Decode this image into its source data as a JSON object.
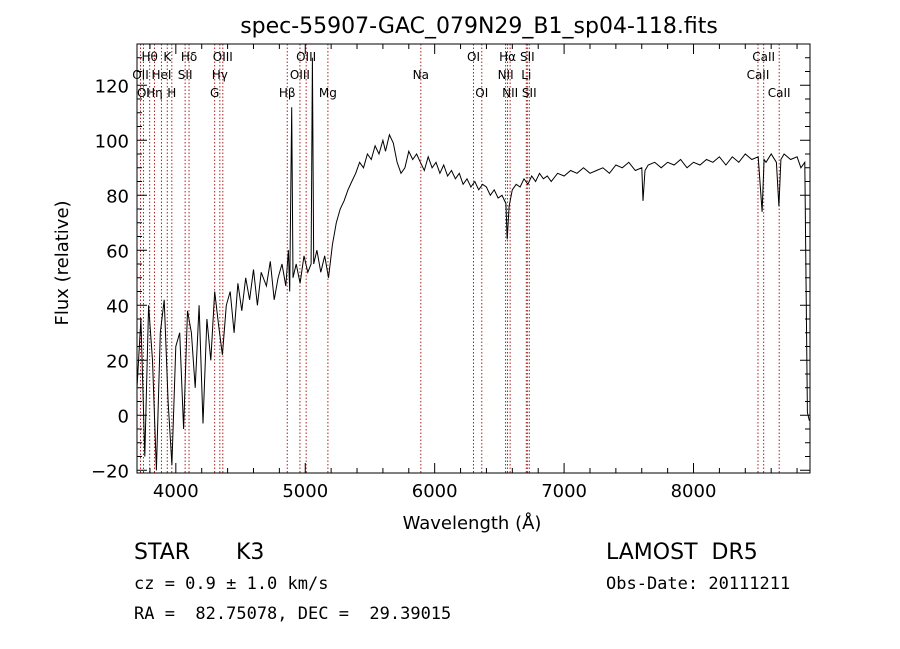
{
  "chart_data": {
    "type": "line",
    "title": "spec-55907-GAC_079N29_B1_sp04-118.fits",
    "xlabel": "Wavelength (Å)",
    "ylabel": "Flux (relative)",
    "xlim": [
      3700,
      8900
    ],
    "ylim": [
      -21,
      135
    ],
    "xticks": [
      4000,
      5000,
      6000,
      7000,
      8000
    ],
    "yticks": [
      -20,
      0,
      20,
      40,
      60,
      80,
      100,
      120
    ],
    "grid": false,
    "line_color": "#000000",
    "marker_color": "#aa2222",
    "series": [
      {
        "points": [
          [
            3700,
            10
          ],
          [
            3730,
            35
          ],
          [
            3760,
            -15
          ],
          [
            3790,
            40
          ],
          [
            3820,
            20
          ],
          [
            3850,
            -20
          ],
          [
            3880,
            30
          ],
          [
            3910,
            42
          ],
          [
            3940,
            5
          ],
          [
            3970,
            -18
          ],
          [
            4000,
            25
          ],
          [
            4030,
            30
          ],
          [
            4060,
            -5
          ],
          [
            4090,
            38
          ],
          [
            4120,
            30
          ],
          [
            4150,
            10
          ],
          [
            4180,
            40
          ],
          [
            4210,
            -3
          ],
          [
            4240,
            35
          ],
          [
            4270,
            20
          ],
          [
            4300,
            45
          ],
          [
            4330,
            33
          ],
          [
            4360,
            22
          ],
          [
            4390,
            40
          ],
          [
            4420,
            45
          ],
          [
            4450,
            30
          ],
          [
            4480,
            48
          ],
          [
            4510,
            38
          ],
          [
            4540,
            50
          ],
          [
            4570,
            42
          ],
          [
            4600,
            53
          ],
          [
            4630,
            40
          ],
          [
            4660,
            52
          ],
          [
            4700,
            47
          ],
          [
            4730,
            56
          ],
          [
            4760,
            42
          ],
          [
            4790,
            50
          ],
          [
            4820,
            55
          ],
          [
            4850,
            47
          ],
          [
            4870,
            60
          ],
          [
            4880,
            45
          ],
          [
            4895,
            112
          ],
          [
            4905,
            50
          ],
          [
            4930,
            55
          ],
          [
            4960,
            48
          ],
          [
            4990,
            58
          ],
          [
            5020,
            52
          ],
          [
            5045,
            55
          ],
          [
            5055,
            130
          ],
          [
            5065,
            55
          ],
          [
            5090,
            60
          ],
          [
            5120,
            52
          ],
          [
            5150,
            58
          ],
          [
            5180,
            50
          ],
          [
            5210,
            62
          ],
          [
            5240,
            70
          ],
          [
            5270,
            75
          ],
          [
            5300,
            78
          ],
          [
            5330,
            82
          ],
          [
            5360,
            85
          ],
          [
            5390,
            88
          ],
          [
            5420,
            92
          ],
          [
            5450,
            90
          ],
          [
            5480,
            95
          ],
          [
            5510,
            93
          ],
          [
            5540,
            98
          ],
          [
            5570,
            95
          ],
          [
            5600,
            100
          ],
          [
            5620,
            96
          ],
          [
            5650,
            102
          ],
          [
            5680,
            99
          ],
          [
            5710,
            92
          ],
          [
            5740,
            88
          ],
          [
            5770,
            90
          ],
          [
            5800,
            96
          ],
          [
            5830,
            93
          ],
          [
            5860,
            95
          ],
          [
            5890,
            92
          ],
          [
            5920,
            89
          ],
          [
            5950,
            94
          ],
          [
            5980,
            90
          ],
          [
            6010,
            92
          ],
          [
            6040,
            88
          ],
          [
            6070,
            91
          ],
          [
            6100,
            87
          ],
          [
            6130,
            89
          ],
          [
            6160,
            86
          ],
          [
            6190,
            88
          ],
          [
            6220,
            84
          ],
          [
            6250,
            86
          ],
          [
            6280,
            83
          ],
          [
            6310,
            85
          ],
          [
            6340,
            82
          ],
          [
            6370,
            84
          ],
          [
            6400,
            83
          ],
          [
            6430,
            80
          ],
          [
            6460,
            82
          ],
          [
            6490,
            79
          ],
          [
            6520,
            80
          ],
          [
            6550,
            77
          ],
          [
            6560,
            64
          ],
          [
            6575,
            76
          ],
          [
            6600,
            82
          ],
          [
            6630,
            84
          ],
          [
            6660,
            83
          ],
          [
            6690,
            86
          ],
          [
            6720,
            84
          ],
          [
            6750,
            87
          ],
          [
            6780,
            85
          ],
          [
            6810,
            88
          ],
          [
            6840,
            86
          ],
          [
            6870,
            87
          ],
          [
            6900,
            85
          ],
          [
            6950,
            88
          ],
          [
            7000,
            87
          ],
          [
            7050,
            89
          ],
          [
            7100,
            88
          ],
          [
            7150,
            90
          ],
          [
            7200,
            88
          ],
          [
            7250,
            89
          ],
          [
            7300,
            90
          ],
          [
            7350,
            88
          ],
          [
            7400,
            91
          ],
          [
            7450,
            90
          ],
          [
            7500,
            92
          ],
          [
            7550,
            89
          ],
          [
            7600,
            90
          ],
          [
            7610,
            78
          ],
          [
            7625,
            89
          ],
          [
            7650,
            91
          ],
          [
            7700,
            92
          ],
          [
            7750,
            90
          ],
          [
            7800,
            92
          ],
          [
            7850,
            91
          ],
          [
            7900,
            93
          ],
          [
            7950,
            90
          ],
          [
            8000,
            92
          ],
          [
            8050,
            91
          ],
          [
            8100,
            93
          ],
          [
            8150,
            92
          ],
          [
            8200,
            94
          ],
          [
            8250,
            91
          ],
          [
            8300,
            94
          ],
          [
            8350,
            92
          ],
          [
            8400,
            95
          ],
          [
            8450,
            93
          ],
          [
            8500,
            94
          ],
          [
            8530,
            74
          ],
          [
            8545,
            93
          ],
          [
            8560,
            92
          ],
          [
            8600,
            95
          ],
          [
            8640,
            92
          ],
          [
            8660,
            76
          ],
          [
            8675,
            93
          ],
          [
            8700,
            95
          ],
          [
            8750,
            93
          ],
          [
            8800,
            94
          ],
          [
            8830,
            90
          ],
          [
            8860,
            92
          ],
          [
            8880,
            1
          ],
          [
            8895,
            -2
          ]
        ]
      }
    ],
    "lines": [
      {
        "wave": 3727,
        "labels": [
          "OII"
        ],
        "row": 1
      },
      {
        "wave": 3750,
        "labels": [
          "OI"
        ],
        "row": 2
      },
      {
        "wave": 3798,
        "labels": [
          "Hθ"
        ],
        "row": 0
      },
      {
        "wave": 3835,
        "labels": [
          "Hη"
        ],
        "row": 2
      },
      {
        "wave": 3889,
        "labels": [
          "HeI"
        ],
        "row": 1
      },
      {
        "wave": 3934,
        "labels": [
          "K"
        ],
        "row": 0
      },
      {
        "wave": 3969,
        "labels": [
          "H"
        ],
        "row": 2
      },
      {
        "wave": 4072,
        "labels": [
          "SII"
        ],
        "row": 1
      },
      {
        "wave": 4102,
        "labels": [
          "Hδ"
        ],
        "row": 0
      },
      {
        "wave": 4300,
        "labels": [
          "G"
        ],
        "row": 2
      },
      {
        "wave": 4340,
        "labels": [
          "Hγ"
        ],
        "row": 1
      },
      {
        "wave": 4363,
        "labels": [
          "OIII"
        ],
        "row": 0
      },
      {
        "wave": 4861,
        "labels": [
          "Hβ"
        ],
        "row": 2
      },
      {
        "wave": 4959,
        "labels": [
          "OIII"
        ],
        "row": 1
      },
      {
        "wave": 5007,
        "labels": [
          "OIII"
        ],
        "row": 0
      },
      {
        "wave": 5175,
        "labels": [
          "Mg"
        ],
        "row": 2
      },
      {
        "wave": 5893,
        "labels": [
          "Na"
        ],
        "row": 1
      },
      {
        "wave": 6300,
        "labels": [
          "OI"
        ],
        "row": 0
      },
      {
        "wave": 6364,
        "labels": [
          "OI"
        ],
        "row": 2
      },
      {
        "wave": 6548,
        "labels": [
          "NII"
        ],
        "row": 1
      },
      {
        "wave": 6563,
        "labels": [
          "Hα"
        ],
        "row": 0
      },
      {
        "wave": 6583,
        "labels": [
          "NII"
        ],
        "row": 2
      },
      {
        "wave": 6708,
        "labels": [
          "Li"
        ],
        "row": 1
      },
      {
        "wave": 6716,
        "labels": [
          "SII"
        ],
        "row": 0
      },
      {
        "wave": 6731,
        "labels": [
          "SII"
        ],
        "row": 2
      },
      {
        "wave": 8498,
        "labels": [
          "CaII"
        ],
        "row": 1
      },
      {
        "wave": 8542,
        "labels": [
          "CaII"
        ],
        "row": 0
      },
      {
        "wave": 8662,
        "labels": [
          "CaII"
        ],
        "row": 2
      }
    ]
  },
  "info": {
    "class_label": "STAR",
    "subclass_label": "K3",
    "survey": "LAMOST  DR5",
    "cz": "cz = 0.9 ± 1.0 km/s",
    "obs_date": "Obs-Date: 20111211",
    "coords": "RA =  82.75078, DEC =  29.39015"
  }
}
